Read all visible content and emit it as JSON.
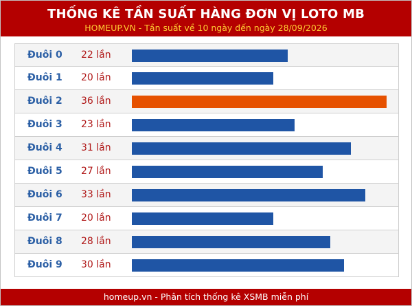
{
  "header": {
    "title": "THỐNG KÊ TẦN SUẤT HÀNG ĐƠN VỊ LOTO MB",
    "subtitle": "HOMEUP.VN - Tần suất về 10 ngày đến ngày 28/09/2026"
  },
  "footer": {
    "text": "homeup.vn - Phân tích thống kê XSMB miễn phí"
  },
  "colors": {
    "header_bg": "#b40000",
    "bar_default": "#1f55a5",
    "bar_max": "#e65100",
    "label_blue": "#2b5fa5",
    "count_red": "#b01818"
  },
  "chart_data": {
    "type": "bar",
    "orientation": "horizontal",
    "categories": [
      "Đuôi 0",
      "Đuôi 1",
      "Đuôi 2",
      "Đuôi 3",
      "Đuôi 4",
      "Đuôi 5",
      "Đuôi 6",
      "Đuôi 7",
      "Đuôi 8",
      "Đuôi 9"
    ],
    "values": [
      22,
      20,
      36,
      23,
      31,
      27,
      33,
      20,
      28,
      30
    ],
    "value_labels": [
      "22 lần",
      "20 lần",
      "36 lần",
      "23 lần",
      "31 lần",
      "27 lần",
      "33 lần",
      "20 lần",
      "28 lần",
      "30 lần"
    ],
    "highlight_max": true,
    "xlim": [
      0,
      36
    ],
    "grid": false
  }
}
